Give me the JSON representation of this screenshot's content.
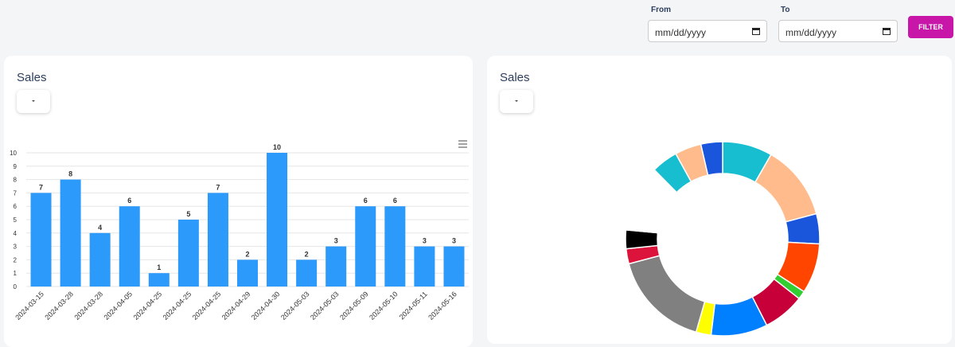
{
  "filters": {
    "from_label": "From",
    "to_label": "To",
    "date_placeholder": "mm/dd/yyyy",
    "button": "FILTER"
  },
  "chart_data": [
    {
      "type": "bar",
      "title": "Sales",
      "categories": [
        "2024-03-15",
        "2024-03-28",
        "2024-03-28",
        "2024-04-05",
        "2024-04-25",
        "2024-04-25",
        "2024-04-25",
        "2024-04-29",
        "2024-04-30",
        "2024-05-03",
        "2024-05-03",
        "2024-05-09",
        "2024-05-10",
        "2024-05-11",
        "2024-05-16"
      ],
      "values": [
        7,
        8,
        4,
        6,
        1,
        5,
        7,
        2,
        10,
        2,
        3,
        6,
        6,
        3,
        3
      ],
      "color": "#2b9afb",
      "ylim": [
        0,
        10
      ],
      "yticks": [
        0,
        1,
        2,
        3,
        4,
        5,
        6,
        7,
        8,
        9,
        10
      ],
      "grid": true
    },
    {
      "type": "donut",
      "title": "Sales",
      "values": [
        8.3,
        12.5,
        5,
        8.3,
        1.4,
        6.9,
        9.4,
        2.5,
        16.4,
        2.5,
        3.1,
        11.1,
        4.4,
        4.4,
        3.6
      ],
      "colors": [
        "#17becf",
        "#ffbb8c",
        "#1a56db",
        "#ff4500",
        "#32cd32",
        "#c70039",
        "#0080ff",
        "#ffff00",
        "#808080",
        "#dc143c",
        "#000000",
        "#ffffff",
        "#17becf",
        "#ffbb8c",
        "#1a56db"
      ]
    }
  ]
}
